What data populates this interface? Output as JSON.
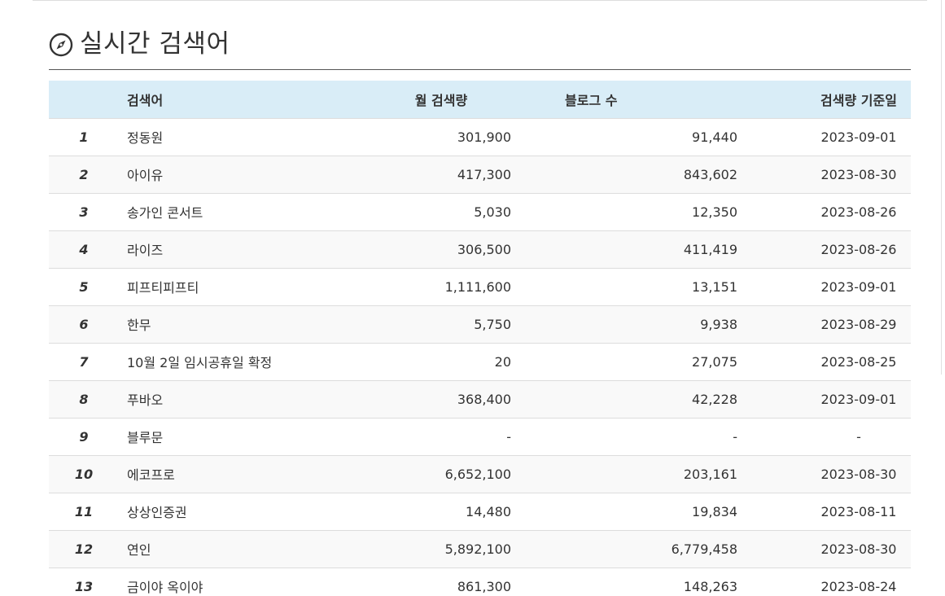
{
  "section": {
    "icon": "compass-icon",
    "title": "실시간 검색어"
  },
  "table": {
    "headers": {
      "rank": "",
      "keyword": "검색어",
      "monthly_volume": "월 검색량",
      "blog_count": "블로그 수",
      "base_date": "검색량 기준일"
    },
    "rows": [
      {
        "rank": "1",
        "keyword": "정동원",
        "monthly_volume": "301,900",
        "blog_count": "91,440",
        "base_date": "2023-09-01"
      },
      {
        "rank": "2",
        "keyword": "아이유",
        "monthly_volume": "417,300",
        "blog_count": "843,602",
        "base_date": "2023-08-30"
      },
      {
        "rank": "3",
        "keyword": "송가인 콘서트",
        "monthly_volume": "5,030",
        "blog_count": "12,350",
        "base_date": "2023-08-26"
      },
      {
        "rank": "4",
        "keyword": "라이즈",
        "monthly_volume": "306,500",
        "blog_count": "411,419",
        "base_date": "2023-08-26"
      },
      {
        "rank": "5",
        "keyword": "피프티피프티",
        "monthly_volume": "1,111,600",
        "blog_count": "13,151",
        "base_date": "2023-09-01"
      },
      {
        "rank": "6",
        "keyword": "한무",
        "monthly_volume": "5,750",
        "blog_count": "9,938",
        "base_date": "2023-08-29"
      },
      {
        "rank": "7",
        "keyword": "10월 2일 임시공휴일 확정",
        "monthly_volume": "20",
        "blog_count": "27,075",
        "base_date": "2023-08-25"
      },
      {
        "rank": "8",
        "keyword": "푸바오",
        "monthly_volume": "368,400",
        "blog_count": "42,228",
        "base_date": "2023-09-01"
      },
      {
        "rank": "9",
        "keyword": "블루문",
        "monthly_volume": "-",
        "blog_count": "-",
        "base_date": "-"
      },
      {
        "rank": "10",
        "keyword": "에코프로",
        "monthly_volume": "6,652,100",
        "blog_count": "203,161",
        "base_date": "2023-08-30"
      },
      {
        "rank": "11",
        "keyword": "상상인증권",
        "monthly_volume": "14,480",
        "blog_count": "19,834",
        "base_date": "2023-08-11"
      },
      {
        "rank": "12",
        "keyword": "연인",
        "monthly_volume": "5,892,100",
        "blog_count": "6,779,458",
        "base_date": "2023-08-30"
      },
      {
        "rank": "13",
        "keyword": "금이야 옥이야",
        "monthly_volume": "861,300",
        "blog_count": "148,263",
        "base_date": "2023-08-24"
      }
    ]
  },
  "colors": {
    "header_bg": "#d9edf7",
    "stripe_bg": "#f9f9f9",
    "row_border": "#dddddd",
    "text": "#333333"
  }
}
